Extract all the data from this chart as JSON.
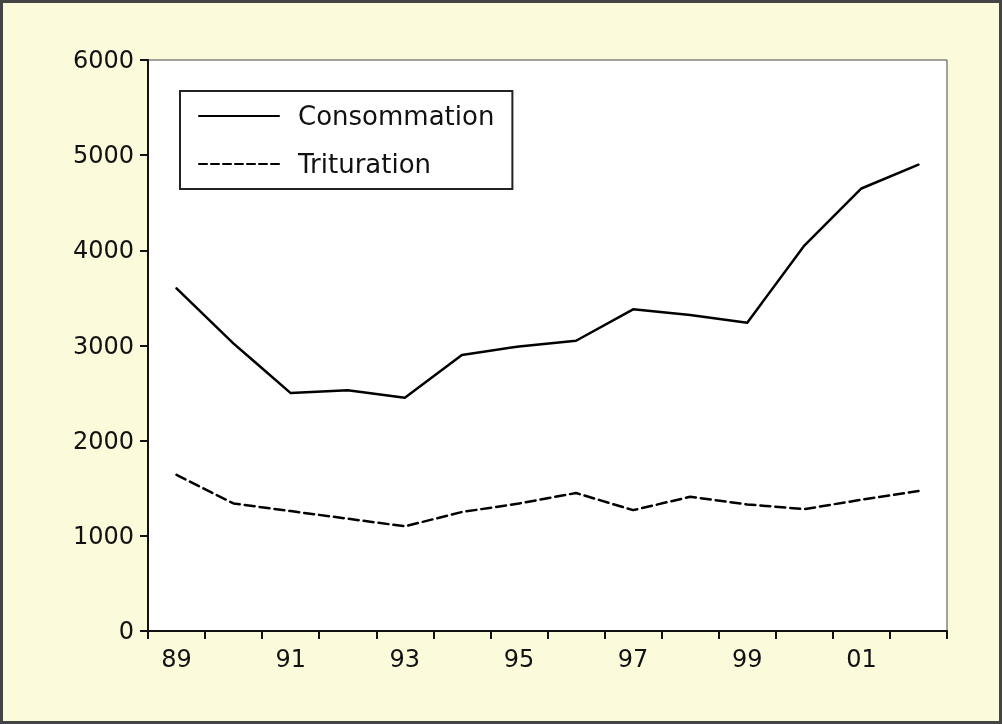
{
  "chart_data": {
    "type": "line",
    "categories": [
      "89",
      null,
      "91",
      null,
      "93",
      null,
      "95",
      null,
      "97",
      null,
      "99",
      null,
      "01",
      null
    ],
    "series": [
      {
        "name": "Consommation",
        "color": "#000000",
        "line_style": "solid",
        "values": [
          3600,
          3020,
          2500,
          2530,
          2450,
          2900,
          2990,
          3050,
          3380,
          3320,
          3240,
          4050,
          4650,
          4900
        ]
      },
      {
        "name": "Trituration",
        "color": "#000000",
        "line_style": "dashed",
        "values": [
          1640,
          1340,
          1260,
          1180,
          1100,
          1250,
          1340,
          1450,
          1270,
          1410,
          1330,
          1280,
          1380,
          1470
        ]
      }
    ],
    "ylim": [
      0,
      6000
    ],
    "yticks": [
      0,
      1000,
      2000,
      3000,
      4000,
      5000,
      6000
    ],
    "grid": false,
    "legend": "top left",
    "marker": "none"
  }
}
